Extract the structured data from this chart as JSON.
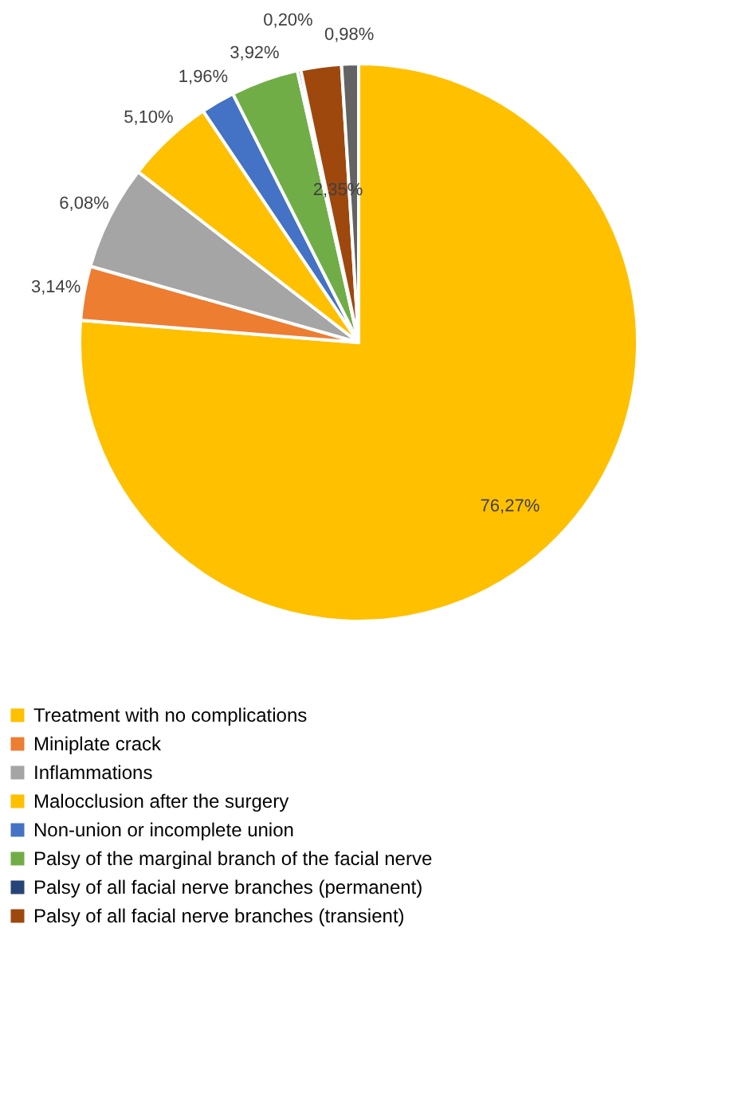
{
  "chart_data": {
    "type": "pie",
    "categories": [
      "Treatment with no complications",
      "Miniplate crack",
      "Inflammations",
      "Malocclusion after the surgery",
      "Non-union or incomplete union",
      "Palsy of the marginal branch of the facial nerve",
      "Palsy of all facial nerve branches (permanent)",
      "Palsy of all facial nerve branches (transient)",
      null
    ],
    "values": [
      76.27,
      3.14,
      6.08,
      5.1,
      1.96,
      3.92,
      0.2,
      2.35,
      0.98
    ],
    "colors": [
      "#ffc000",
      "#ed7d31",
      "#a5a5a5",
      "#ffc000",
      "#4472c4",
      "#70ad47",
      "#264478",
      "#9e480e",
      "#636363"
    ],
    "value_labels": [
      "76,27%",
      "3,14%",
      "6,08%",
      "5,10%",
      "1,96%",
      "3,92%",
      "0,20%",
      "2,35%",
      "0,98%"
    ],
    "legend": "bottom"
  }
}
